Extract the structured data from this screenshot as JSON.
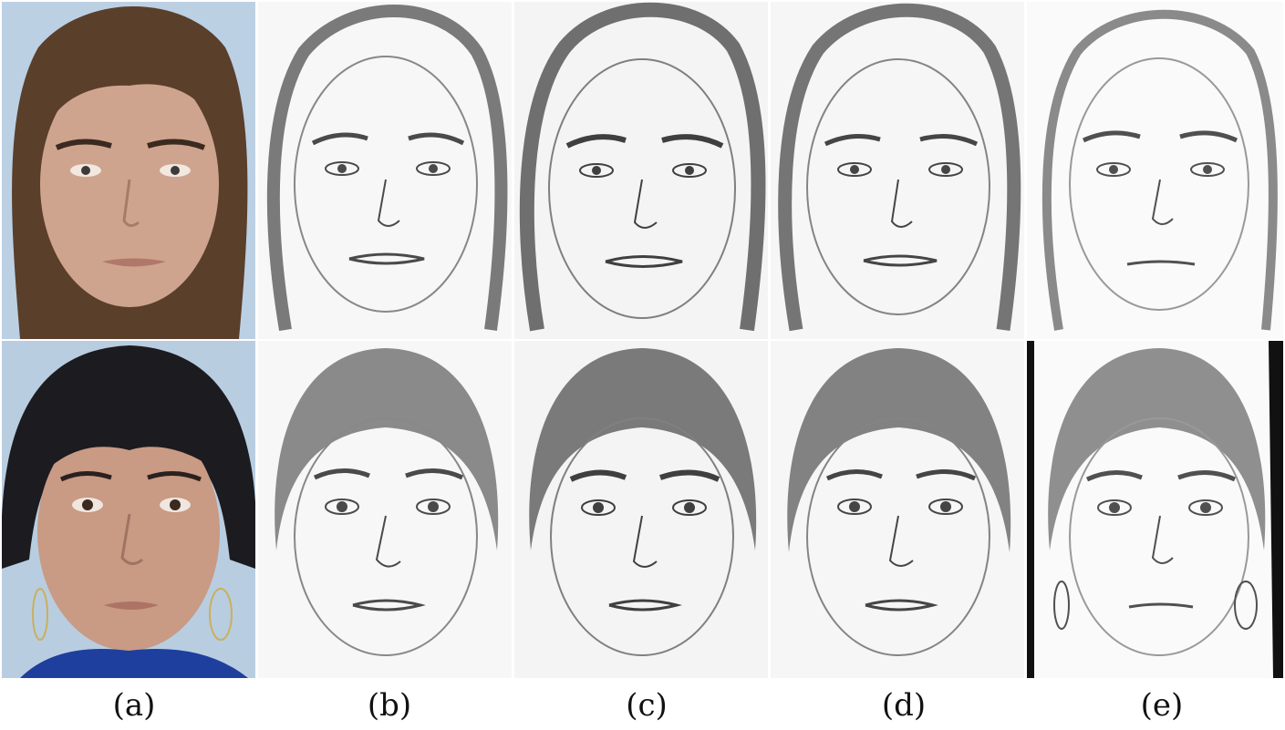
{
  "figure": {
    "column_labels": [
      "(a)",
      "(b)",
      "(c)",
      "(d)",
      "(e)"
    ],
    "rows": [
      {
        "subject": "male",
        "photo_colors": {
          "background": "#bcd0e4",
          "skin": "#cfa48f",
          "hair": "#5a3f2b"
        }
      },
      {
        "subject": "female",
        "photo_colors": {
          "background": "#b9cde0",
          "skin": "#c99a84",
          "hair": "#1c1b20",
          "shirt": "#1e3f9e"
        }
      }
    ],
    "sketch_colors": {
      "paper": "#f7f7f7",
      "stroke": "#4a4a4a",
      "hair": "#7a7a7a"
    }
  }
}
